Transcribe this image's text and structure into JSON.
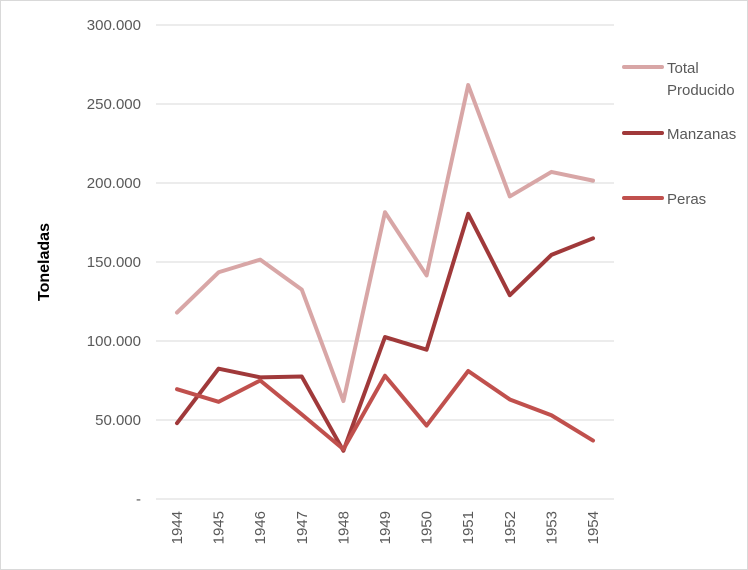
{
  "chart_data": {
    "type": "line",
    "title": "",
    "xlabel": "",
    "ylabel": "Toneladas",
    "ylim": [
      0,
      300000
    ],
    "y_ticks": [
      0,
      50000,
      100000,
      150000,
      200000,
      250000,
      300000
    ],
    "y_tick_labels": [
      "-",
      "50.000",
      "100.000",
      "150.000",
      "200.000",
      "250.000",
      "300.000"
    ],
    "grid": "horizontal",
    "legend_position": "right",
    "categories": [
      "1944",
      "1945",
      "1946",
      "1947",
      "1948",
      "1949",
      "1950",
      "1951",
      "1952",
      "1953",
      "1954"
    ],
    "series": [
      {
        "name": "Total Producido",
        "name_lines": [
          "Total",
          "Producido"
        ],
        "color": "#d8a6a6",
        "values": [
          118000,
          143500,
          151500,
          132500,
          62000,
          181500,
          141500,
          262000,
          191500,
          207000,
          201500
        ]
      },
      {
        "name": "Manzanas",
        "name_lines": [
          "Manzanas"
        ],
        "color": "#a0393a",
        "values": [
          48000,
          82500,
          77000,
          77500,
          30500,
          102500,
          94500,
          180500,
          129000,
          154500,
          165000
        ]
      },
      {
        "name": "Peras",
        "name_lines": [
          "Peras"
        ],
        "color": "#c0504d",
        "values": [
          69500,
          61500,
          75000,
          53500,
          31500,
          78000,
          46500,
          81000,
          63000,
          53000,
          37000
        ]
      }
    ]
  }
}
